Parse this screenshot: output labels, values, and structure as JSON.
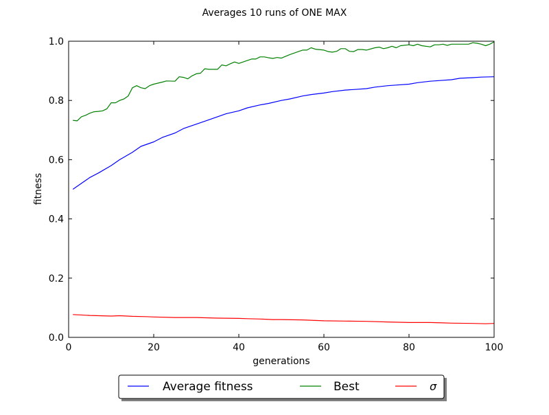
{
  "chart_data": {
    "type": "line",
    "title": "Averages 10 runs of ONE MAX",
    "xlabel": "generations",
    "ylabel": "fitness",
    "xlim": [
      0,
      100
    ],
    "ylim": [
      0.0,
      1.0
    ],
    "xticks": [
      0,
      20,
      40,
      60,
      80,
      100
    ],
    "yticks": [
      0.0,
      0.2,
      0.4,
      0.6,
      0.8,
      1.0
    ],
    "xtick_labels": [
      "0",
      "20",
      "40",
      "60",
      "80",
      "100"
    ],
    "ytick_labels": [
      "0.0",
      "0.2",
      "0.4",
      "0.6",
      "0.8",
      "1.0"
    ],
    "grid": false,
    "legend_position": "bottom-center (below plot)",
    "legend_columns": 3,
    "series": [
      {
        "name": "Average fitness",
        "color": "#0000ff",
        "points": [
          [
            1,
            0.5
          ],
          [
            3,
            0.52
          ],
          [
            5,
            0.54
          ],
          [
            7,
            0.555
          ],
          [
            10,
            0.58
          ],
          [
            12,
            0.6
          ],
          [
            15,
            0.625
          ],
          [
            17,
            0.645
          ],
          [
            20,
            0.66
          ],
          [
            22,
            0.675
          ],
          [
            25,
            0.69
          ],
          [
            27,
            0.705
          ],
          [
            30,
            0.72
          ],
          [
            32,
            0.73
          ],
          [
            35,
            0.745
          ],
          [
            37,
            0.755
          ],
          [
            40,
            0.765
          ],
          [
            42,
            0.775
          ],
          [
            45,
            0.785
          ],
          [
            47,
            0.79
          ],
          [
            50,
            0.8
          ],
          [
            52,
            0.805
          ],
          [
            55,
            0.815
          ],
          [
            57,
            0.82
          ],
          [
            60,
            0.825
          ],
          [
            62,
            0.83
          ],
          [
            65,
            0.835
          ],
          [
            67,
            0.837
          ],
          [
            70,
            0.84
          ],
          [
            72,
            0.845
          ],
          [
            75,
            0.85
          ],
          [
            77,
            0.852
          ],
          [
            80,
            0.855
          ],
          [
            82,
            0.86
          ],
          [
            85,
            0.865
          ],
          [
            87,
            0.867
          ],
          [
            90,
            0.87
          ],
          [
            92,
            0.875
          ],
          [
            95,
            0.877
          ],
          [
            97,
            0.879
          ],
          [
            100,
            0.88
          ]
        ]
      },
      {
        "name": "Best",
        "color": "#008000",
        "points": [
          [
            1,
            0.733
          ],
          [
            2,
            0.731
          ],
          [
            3,
            0.745
          ],
          [
            4,
            0.75
          ],
          [
            5,
            0.757
          ],
          [
            6,
            0.762
          ],
          [
            7,
            0.763
          ],
          [
            8,
            0.765
          ],
          [
            9,
            0.772
          ],
          [
            10,
            0.792
          ],
          [
            11,
            0.792
          ],
          [
            12,
            0.8
          ],
          [
            13,
            0.805
          ],
          [
            14,
            0.815
          ],
          [
            15,
            0.843
          ],
          [
            16,
            0.85
          ],
          [
            17,
            0.843
          ],
          [
            18,
            0.84
          ],
          [
            19,
            0.85
          ],
          [
            20,
            0.855
          ],
          [
            22,
            0.862
          ],
          [
            23,
            0.866
          ],
          [
            25,
            0.865
          ],
          [
            26,
            0.88
          ],
          [
            27,
            0.878
          ],
          [
            28,
            0.873
          ],
          [
            29,
            0.883
          ],
          [
            30,
            0.89
          ],
          [
            31,
            0.892
          ],
          [
            32,
            0.907
          ],
          [
            33,
            0.905
          ],
          [
            35,
            0.905
          ],
          [
            36,
            0.92
          ],
          [
            37,
            0.917
          ],
          [
            38,
            0.924
          ],
          [
            39,
            0.93
          ],
          [
            40,
            0.925
          ],
          [
            41,
            0.93
          ],
          [
            43,
            0.94
          ],
          [
            44,
            0.94
          ],
          [
            45,
            0.947
          ],
          [
            46,
            0.947
          ],
          [
            47,
            0.944
          ],
          [
            48,
            0.942
          ],
          [
            49,
            0.945
          ],
          [
            50,
            0.943
          ],
          [
            52,
            0.955
          ],
          [
            54,
            0.965
          ],
          [
            55,
            0.97
          ],
          [
            56,
            0.97
          ],
          [
            57,
            0.978
          ],
          [
            58,
            0.973
          ],
          [
            60,
            0.97
          ],
          [
            61,
            0.965
          ],
          [
            62,
            0.963
          ],
          [
            63,
            0.966
          ],
          [
            64,
            0.975
          ],
          [
            65,
            0.975
          ],
          [
            66,
            0.966
          ],
          [
            67,
            0.965
          ],
          [
            68,
            0.972
          ],
          [
            69,
            0.972
          ],
          [
            70,
            0.97
          ],
          [
            72,
            0.978
          ],
          [
            73,
            0.98
          ],
          [
            74,
            0.975
          ],
          [
            75,
            0.978
          ],
          [
            76,
            0.983
          ],
          [
            77,
            0.978
          ],
          [
            78,
            0.985
          ],
          [
            80,
            0.988
          ],
          [
            81,
            0.985
          ],
          [
            82,
            0.99
          ],
          [
            83,
            0.985
          ],
          [
            85,
            0.981
          ],
          [
            86,
            0.988
          ],
          [
            87,
            0.988
          ],
          [
            88,
            0.99
          ],
          [
            89,
            0.986
          ],
          [
            90,
            0.99
          ],
          [
            91,
            0.99
          ],
          [
            93,
            0.99
          ],
          [
            94,
            0.99
          ],
          [
            95,
            0.995
          ],
          [
            96,
            0.993
          ],
          [
            97,
            0.99
          ],
          [
            98,
            0.985
          ],
          [
            99,
            0.99
          ],
          [
            100,
            0.998
          ]
        ]
      },
      {
        "name": "σ",
        "color": "#ff0000",
        "points": [
          [
            1,
            0.077
          ],
          [
            5,
            0.074
          ],
          [
            10,
            0.072
          ],
          [
            12,
            0.073
          ],
          [
            15,
            0.071
          ],
          [
            18,
            0.07
          ],
          [
            20,
            0.069
          ],
          [
            25,
            0.067
          ],
          [
            30,
            0.067
          ],
          [
            35,
            0.065
          ],
          [
            40,
            0.064
          ],
          [
            42,
            0.063
          ],
          [
            45,
            0.062
          ],
          [
            48,
            0.06
          ],
          [
            50,
            0.06
          ],
          [
            55,
            0.059
          ],
          [
            60,
            0.056
          ],
          [
            65,
            0.055
          ],
          [
            70,
            0.054
          ],
          [
            75,
            0.052
          ],
          [
            80,
            0.05
          ],
          [
            85,
            0.05
          ],
          [
            88,
            0.049
          ],
          [
            90,
            0.048
          ],
          [
            95,
            0.047
          ],
          [
            98,
            0.046
          ],
          [
            100,
            0.047
          ]
        ]
      }
    ]
  }
}
